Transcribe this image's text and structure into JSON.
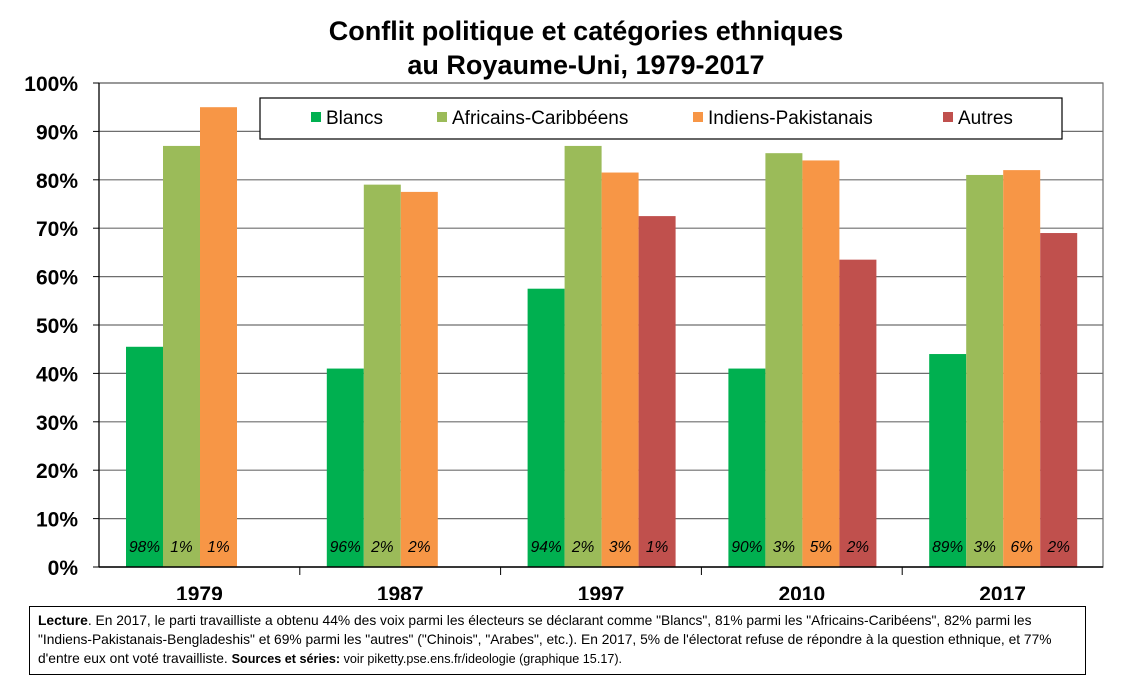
{
  "title": {
    "line1": "Conflit politique et catégories ethniques",
    "line2": "au Royaume-Uni, 1979-2017"
  },
  "chart_data": {
    "type": "bar",
    "title": "Conflit politique et catégories ethniques au Royaume-Uni, 1979-2017",
    "xlabel": "",
    "ylabel": "",
    "ylim": [
      0,
      100
    ],
    "y_ticks": [
      "0%",
      "10%",
      "20%",
      "30%",
      "40%",
      "50%",
      "60%",
      "70%",
      "80%",
      "90%",
      "100%"
    ],
    "grid": true,
    "legend_position": "top",
    "categories": [
      "1979",
      "1987",
      "1997",
      "2010",
      "2017"
    ],
    "series": [
      {
        "name": "Blancs",
        "color": "#00b050",
        "values": [
          45.5,
          41,
          57.5,
          41,
          44
        ],
        "shares": [
          "98%",
          "96%",
          "94%",
          "90%",
          "89%"
        ]
      },
      {
        "name": "Africains-Caribbéens",
        "color": "#9bbb59",
        "values": [
          87,
          79,
          87,
          85.5,
          81
        ],
        "shares": [
          "1%",
          "2%",
          "2%",
          "3%",
          "3%"
        ]
      },
      {
        "name": "Indiens-Pakistanais",
        "color": "#f79646",
        "values": [
          95,
          77.5,
          81.5,
          84,
          82
        ],
        "shares": [
          "1%",
          "2%",
          "3%",
          "5%",
          "6%"
        ]
      },
      {
        "name": "Autres",
        "color": "#c0504d",
        "values": [
          null,
          null,
          72.5,
          63.5,
          69
        ],
        "shares": [
          "",
          "",
          "1%",
          "2%",
          "2%"
        ]
      }
    ]
  },
  "note": {
    "lecture_label": "Lecture",
    "lecture_text": ". En 2017, le parti travailliste a obtenu 44% des voix parmi les électeurs se déclarant comme \"Blancs\", 81% parmi les \"Africains-Caribéens\", 82% parmi les \"Indiens-Pakistanais-Bengladeshis\" et 69% parmi les \"autres\" (\"Chinois\", \"Arabes\", etc.). En 2017, 5% de l'électorat refuse de répondre à la question ethnique, et 77% d'entre eux ont voté travailliste. ",
    "sources_label": "Sources et séries:",
    "sources_text": " voir piketty.pse.ens.fr/ideologie (graphique 15.17)."
  }
}
